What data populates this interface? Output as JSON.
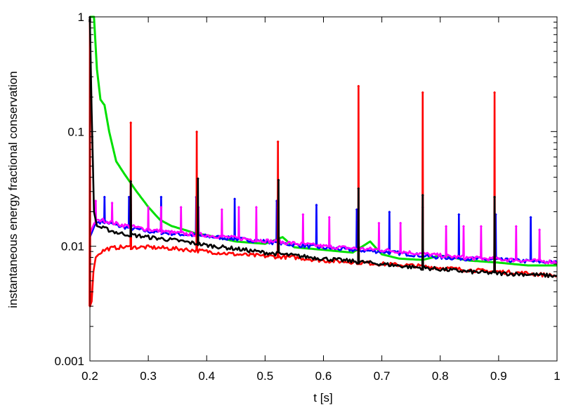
{
  "chart_data": {
    "type": "line",
    "title": "",
    "xlabel": "t [s]",
    "ylabel": "instantaneous energy fractional conservation",
    "x_scale": "linear",
    "y_scale": "log",
    "xlim": [
      0.2,
      1.0
    ],
    "ylim": [
      0.001,
      1
    ],
    "grid": false,
    "legend": "none",
    "x_ticks": [
      0.2,
      0.3,
      0.4,
      0.5,
      0.6,
      0.7,
      0.8,
      0.9,
      1.0
    ],
    "x_tick_labels": [
      "0.2",
      "0.3",
      "0.4",
      "0.5",
      "0.6",
      "0.7",
      "0.8",
      "0.9",
      "1"
    ],
    "y_ticks": [
      0.001,
      0.01,
      0.1,
      1
    ],
    "y_tick_labels": [
      "0.001",
      "0.01",
      "0.1",
      "1"
    ],
    "series": [
      {
        "color": "#00e000",
        "x": [
          0.2,
          0.207,
          0.212,
          0.218,
          0.225,
          0.233,
          0.245,
          0.26,
          0.28,
          0.3,
          0.32,
          0.34,
          0.36,
          0.38,
          0.4,
          0.45,
          0.5,
          0.53,
          0.55,
          0.6,
          0.65,
          0.68,
          0.7,
          0.73,
          0.75,
          0.77,
          0.8,
          0.85,
          0.9,
          0.95,
          1.0
        ],
        "y": [
          1.0,
          1.0,
          0.35,
          0.19,
          0.17,
          0.1,
          0.055,
          0.042,
          0.03,
          0.022,
          0.017,
          0.015,
          0.014,
          0.013,
          0.0125,
          0.011,
          0.0105,
          0.012,
          0.0098,
          0.0093,
          0.0088,
          0.011,
          0.0085,
          0.0078,
          0.0077,
          0.0076,
          0.0083,
          0.0075,
          0.0072,
          0.0068,
          0.0068
        ]
      },
      {
        "color": "#0000ff",
        "x": [
          0.2,
          0.21,
          0.22,
          0.25,
          0.3,
          0.35,
          0.4,
          0.45,
          0.5,
          0.55,
          0.6,
          0.65,
          0.7,
          0.75,
          0.8,
          0.85,
          0.9,
          0.95,
          1.0
        ],
        "y": [
          0.012,
          0.016,
          0.0165,
          0.015,
          0.0135,
          0.0128,
          0.0122,
          0.0116,
          0.011,
          0.0103,
          0.0097,
          0.0093,
          0.009,
          0.0085,
          0.008,
          0.0078,
          0.0076,
          0.0074,
          0.0072
        ],
        "spikes": [
          {
            "x": 0.225,
            "y": 0.027
          },
          {
            "x": 0.267,
            "y": 0.027
          },
          {
            "x": 0.322,
            "y": 0.027
          },
          {
            "x": 0.382,
            "y": 0.027
          },
          {
            "x": 0.448,
            "y": 0.026
          },
          {
            "x": 0.52,
            "y": 0.025
          },
          {
            "x": 0.588,
            "y": 0.023
          },
          {
            "x": 0.657,
            "y": 0.021
          },
          {
            "x": 0.713,
            "y": 0.02
          },
          {
            "x": 0.77,
            "y": 0.022
          },
          {
            "x": 0.832,
            "y": 0.019
          },
          {
            "x": 0.895,
            "y": 0.019
          },
          {
            "x": 0.955,
            "y": 0.018
          }
        ]
      },
      {
        "color": "#ff00ff",
        "x": [
          0.2,
          0.21,
          0.22,
          0.25,
          0.3,
          0.35,
          0.4,
          0.45,
          0.5,
          0.55,
          0.6,
          0.65,
          0.7,
          0.75,
          0.8,
          0.85,
          0.9,
          0.95,
          1.0
        ],
        "y": [
          0.013,
          0.017,
          0.017,
          0.0155,
          0.014,
          0.013,
          0.0125,
          0.0118,
          0.0112,
          0.0106,
          0.01,
          0.0096,
          0.0093,
          0.0088,
          0.0083,
          0.0079,
          0.0077,
          0.0075,
          0.0073
        ],
        "spikes": [
          {
            "x": 0.21,
            "y": 0.025
          },
          {
            "x": 0.238,
            "y": 0.024
          },
          {
            "x": 0.27,
            "y": 0.023
          },
          {
            "x": 0.3,
            "y": 0.022
          },
          {
            "x": 0.322,
            "y": 0.022
          },
          {
            "x": 0.356,
            "y": 0.022
          },
          {
            "x": 0.386,
            "y": 0.022
          },
          {
            "x": 0.426,
            "y": 0.021
          },
          {
            "x": 0.455,
            "y": 0.022
          },
          {
            "x": 0.485,
            "y": 0.022
          },
          {
            "x": 0.522,
            "y": 0.022
          },
          {
            "x": 0.565,
            "y": 0.019
          },
          {
            "x": 0.61,
            "y": 0.018
          },
          {
            "x": 0.66,
            "y": 0.017
          },
          {
            "x": 0.695,
            "y": 0.016
          },
          {
            "x": 0.732,
            "y": 0.016
          },
          {
            "x": 0.77,
            "y": 0.016
          },
          {
            "x": 0.81,
            "y": 0.015
          },
          {
            "x": 0.84,
            "y": 0.015
          },
          {
            "x": 0.87,
            "y": 0.015
          },
          {
            "x": 0.93,
            "y": 0.015
          },
          {
            "x": 0.97,
            "y": 0.014
          }
        ]
      },
      {
        "color": "#ff0000",
        "x": [
          0.2,
          0.203,
          0.206,
          0.21,
          0.215,
          0.22,
          0.23,
          0.25,
          0.3,
          0.35,
          0.4,
          0.45,
          0.5,
          0.55,
          0.6,
          0.65,
          0.7,
          0.75,
          0.8,
          0.85,
          0.9,
          0.95,
          1.0
        ],
        "y": [
          0.003,
          0.0033,
          0.006,
          0.008,
          0.0085,
          0.009,
          0.0095,
          0.0098,
          0.0098,
          0.0095,
          0.009,
          0.0085,
          0.0082,
          0.008,
          0.0075,
          0.0073,
          0.007,
          0.0068,
          0.0065,
          0.0062,
          0.006,
          0.0058,
          0.0055
        ],
        "spikes": [
          {
            "x": 0.2,
            "y": 0.95
          },
          {
            "x": 0.27,
            "y": 0.12
          },
          {
            "x": 0.383,
            "y": 0.1
          },
          {
            "x": 0.522,
            "y": 0.082
          },
          {
            "x": 0.66,
            "y": 0.25
          },
          {
            "x": 0.77,
            "y": 0.22
          },
          {
            "x": 0.893,
            "y": 0.22
          }
        ]
      },
      {
        "color": "#000000",
        "x": [
          0.2,
          0.203,
          0.207,
          0.212,
          0.22,
          0.25,
          0.3,
          0.35,
          0.4,
          0.45,
          0.5,
          0.55,
          0.6,
          0.65,
          0.7,
          0.75,
          0.8,
          0.85,
          0.9,
          0.95,
          1.0
        ],
        "y": [
          0.9,
          0.15,
          0.02,
          0.015,
          0.0145,
          0.013,
          0.012,
          0.0112,
          0.0102,
          0.0095,
          0.0088,
          0.0083,
          0.0078,
          0.0074,
          0.007,
          0.0066,
          0.0063,
          0.006,
          0.0058,
          0.0057,
          0.0055
        ],
        "spikes": [
          {
            "x": 0.2,
            "y": 1.0
          },
          {
            "x": 0.27,
            "y": 0.037
          },
          {
            "x": 0.385,
            "y": 0.039
          },
          {
            "x": 0.523,
            "y": 0.038
          },
          {
            "x": 0.66,
            "y": 0.032
          },
          {
            "x": 0.77,
            "y": 0.028
          },
          {
            "x": 0.893,
            "y": 0.027
          }
        ]
      }
    ]
  }
}
